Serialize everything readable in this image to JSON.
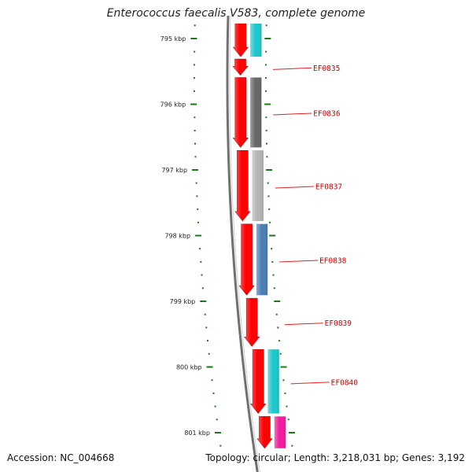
{
  "title": "Enterococcus faecalis V583, complete genome",
  "footer": {
    "accession": "Accession: NC_004668",
    "topology": "Topology: circular; Length: 3,218,031 bp; Genes: 3,192"
  },
  "map": {
    "ticks": [
      {
        "label": "795 kbp",
        "bp": 795000
      },
      {
        "label": "796 kbp",
        "bp": 796000
      },
      {
        "label": "797 kbp",
        "bp": 797000
      },
      {
        "label": "798 kbp",
        "bp": 798000
      },
      {
        "label": "799 kbp",
        "bp": 799000
      },
      {
        "label": "800 kbp",
        "bp": 800000
      },
      {
        "label": "801 kbp",
        "bp": 801000
      }
    ],
    "genes": [
      {
        "name": "",
        "start": 794750,
        "end": 795300,
        "color": "#1cc8cc"
      },
      {
        "name": "EF0835",
        "start": 795300,
        "end": 795570,
        "color": null
      },
      {
        "name": "EF0836",
        "start": 795570,
        "end": 796680,
        "color": "#676767"
      },
      {
        "name": "EF0837",
        "start": 796680,
        "end": 797800,
        "color": "#b4b4b4"
      },
      {
        "name": "EF0838",
        "start": 797800,
        "end": 798930,
        "color": "#4a7fb4"
      },
      {
        "name": "EF0839",
        "start": 798930,
        "end": 799710,
        "color": null
      },
      {
        "name": "EF0840",
        "start": 799710,
        "end": 800730,
        "color": "#1cc8cc"
      },
      {
        "name": "",
        "start": 800730,
        "end": 801260,
        "color": "#f21c9e"
      }
    ],
    "colors": {
      "cds": "#ff0000",
      "backbone": "#707070",
      "ticks": "#1a7a1a",
      "label_text": "#cc0000",
      "label_line": "#dd2222"
    }
  }
}
